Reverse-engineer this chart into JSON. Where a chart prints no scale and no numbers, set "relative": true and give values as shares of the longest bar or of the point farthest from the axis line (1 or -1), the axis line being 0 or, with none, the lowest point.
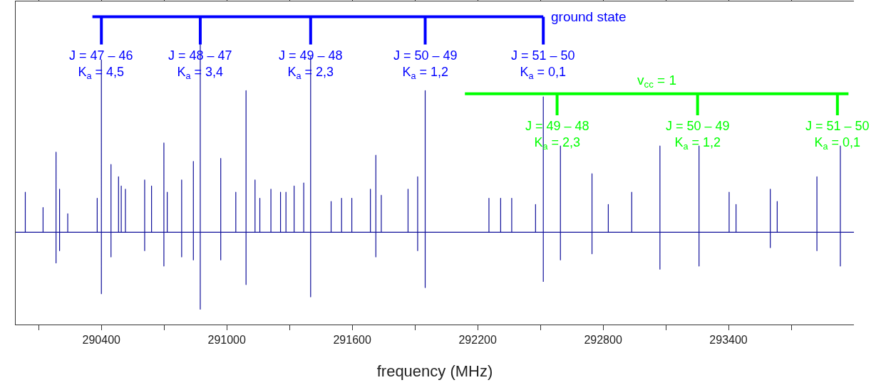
{
  "chart_data": {
    "type": "line",
    "relative": true,
    "xlabel": "frequency (MHz)",
    "xlim": [
      289990,
      294000
    ],
    "xticks": [
      {
        "value": 290100,
        "label": null
      },
      290400,
      {
        "value": 290700,
        "label": null
      },
      291000,
      {
        "value": 291300,
        "label": null
      },
      291600,
      {
        "value": 291900,
        "label": null
      },
      292200,
      {
        "value": 292500,
        "label": null
      },
      292800,
      {
        "value": 293100,
        "label": null
      },
      293400,
      {
        "value": 293700,
        "label": null
      }
    ],
    "line_style": "solid",
    "series": [
      {
        "color": "#10109a",
        "x": [
          289990,
          290036,
          290036,
          290036,
          290121,
          290121,
          290121,
          290183,
          290183,
          290183,
          290183,
          290200,
          290200,
          290200,
          290200,
          290239,
          290239,
          290239,
          290380,
          290380,
          290380,
          290400,
          290400,
          290400,
          290400,
          290446,
          290446,
          290446,
          290446,
          290482,
          290482,
          290482,
          290495,
          290495,
          290495,
          290515,
          290515,
          290515,
          290607,
          290607,
          290607,
          290607,
          290640,
          290640,
          290640,
          290699,
          290699,
          290699,
          290699,
          290715,
          290715,
          290715,
          290784,
          290784,
          290784,
          290784,
          290840,
          290840,
          290840,
          290840,
          290873,
          290873,
          290873,
          290873,
          290971,
          290971,
          290971,
          290971,
          291043,
          291043,
          291043,
          291092,
          291092,
          291092,
          291092,
          291135,
          291135,
          291135,
          291158,
          291158,
          291158,
          291211,
          291211,
          291211,
          291257,
          291257,
          291257,
          291283,
          291283,
          291283,
          291322,
          291322,
          291322,
          291368,
          291368,
          291368,
          291401,
          291401,
          291401,
          291401,
          291499,
          291499,
          291499,
          291549,
          291549,
          291549,
          291598,
          291598,
          291598,
          291687,
          291687,
          291687,
          291713,
          291713,
          291713,
          291713,
          291739,
          291739,
          291739,
          291867,
          291867,
          291867,
          291913,
          291913,
          291913,
          291913,
          291949,
          291949,
          291949,
          291949,
          292254,
          292254,
          292254,
          292310,
          292310,
          292310,
          292363,
          292363,
          292363,
          292477,
          292477,
          292477,
          292514,
          292514,
          292514,
          292514,
          292596,
          292596,
          292596,
          292596,
          292747,
          292747,
          292747,
          292747,
          292825,
          292825,
          292825,
          292937,
          292937,
          292937,
          293072,
          293072,
          293072,
          293072,
          293259,
          293259,
          293259,
          293259,
          293403,
          293403,
          293403,
          293436,
          293436,
          293436,
          293600,
          293600,
          293600,
          293600,
          293633,
          293633,
          293633,
          293823,
          293823,
          293823,
          293823,
          293935,
          293935,
          293935,
          293935,
          294000
        ],
        "values": [
          0.3,
          0.3,
          0.43,
          0.3,
          0.3,
          0.38,
          0.3,
          0.3,
          0.56,
          0.2,
          0.3,
          0.3,
          0.44,
          0.24,
          0.3,
          0.3,
          0.36,
          0.3,
          0.3,
          0.41,
          0.3,
          0.3,
          0.86,
          0.1,
          0.3,
          0.3,
          0.52,
          0.22,
          0.3,
          0.3,
          0.48,
          0.3,
          0.3,
          0.45,
          0.3,
          0.3,
          0.44,
          0.3,
          0.3,
          0.47,
          0.24,
          0.3,
          0.3,
          0.45,
          0.3,
          0.3,
          0.59,
          0.19,
          0.3,
          0.3,
          0.43,
          0.3,
          0.3,
          0.47,
          0.22,
          0.3,
          0.3,
          0.53,
          0.21,
          0.3,
          0.3,
          0.91,
          0.05,
          0.3,
          0.3,
          0.54,
          0.21,
          0.3,
          0.3,
          0.43,
          0.3,
          0.3,
          0.76,
          0.13,
          0.3,
          0.3,
          0.47,
          0.3,
          0.3,
          0.41,
          0.3,
          0.3,
          0.44,
          0.3,
          0.3,
          0.43,
          0.3,
          0.3,
          0.43,
          0.3,
          0.3,
          0.45,
          0.3,
          0.3,
          0.46,
          0.3,
          0.3,
          0.87,
          0.09,
          0.3,
          0.3,
          0.4,
          0.3,
          0.3,
          0.41,
          0.3,
          0.3,
          0.41,
          0.3,
          0.3,
          0.44,
          0.3,
          0.3,
          0.55,
          0.22,
          0.3,
          0.3,
          0.42,
          0.3,
          0.3,
          0.44,
          0.3,
          0.3,
          0.48,
          0.24,
          0.3,
          0.3,
          0.76,
          0.12,
          0.3,
          0.3,
          0.41,
          0.3,
          0.3,
          0.41,
          0.3,
          0.3,
          0.41,
          0.3,
          0.3,
          0.39,
          0.3,
          0.3,
          0.74,
          0.14,
          0.3,
          0.3,
          0.58,
          0.21,
          0.3,
          0.3,
          0.49,
          0.23,
          0.3,
          0.3,
          0.39,
          0.3,
          0.3,
          0.43,
          0.3,
          0.3,
          0.58,
          0.18,
          0.3,
          0.3,
          0.58,
          0.19,
          0.3,
          0.3,
          0.43,
          0.3,
          0.3,
          0.39,
          0.3,
          0.3,
          0.44,
          0.25,
          0.3,
          0.3,
          0.4,
          0.3,
          0.3,
          0.48,
          0.24,
          0.3,
          0.3,
          0.58,
          0.19,
          0.3,
          0.3
        ]
      },
      {
        "name": "ground state",
        "color": "#0000ff",
        "x": [
          290357,
          292514,
          null,
          290400,
          290400,
          null,
          290873,
          290873,
          null,
          291401,
          291401,
          null,
          291949,
          291949,
          null,
          292514,
          292514
        ],
        "values": [
          1,
          1,
          null,
          1,
          0.91,
          null,
          1,
          0.91,
          null,
          1,
          0.91,
          null,
          1,
          0.91,
          null,
          1,
          0.91
        ]
      },
      {
        "name": "v$_{cc}$ = 1",
        "color": "#00ff00",
        "x": [
          292139,
          293974,
          null,
          292580,
          292580,
          null,
          293252,
          293252,
          null,
          293921,
          293921
        ],
        "values": [
          0.75,
          0.75,
          null,
          0.75,
          0.68,
          null,
          0.75,
          0.68,
          null,
          0.75,
          0.68
        ]
      }
    ],
    "annotations": [
      {
        "text": "J = 47 – 46\nK$_{a}$ = 4,5",
        "x": 290400,
        "y": 0.91
      },
      {
        "text": "J = 48 – 47\nK$_{a}$ = 3,4",
        "x": 290873,
        "y": 0.91
      },
      {
        "text": "J = 49 – 48\nK$_{a}$ = 2,3",
        "x": 291401,
        "y": 0.91
      },
      {
        "text": "J = 50 – 49\nK$_{a}$ = 1,2",
        "x": 291949,
        "y": 0.91
      },
      {
        "text": "J = 51 – 50\nK$_{a}$ = 0,1",
        "x": 292514,
        "y": 0.91
      },
      {
        "text": "J = 49 – 48\nK$_{a}$ = 2,3",
        "x": 292580,
        "y": 0.68
      },
      {
        "text": "J = 50 – 49\nK$_{a}$ = 1,2",
        "x": 293252,
        "y": 0.68
      },
      {
        "text": "J = 51 – 50\nK$_{a}$ = 0,1",
        "x": 293921,
        "y": 0.68
      }
    ]
  }
}
